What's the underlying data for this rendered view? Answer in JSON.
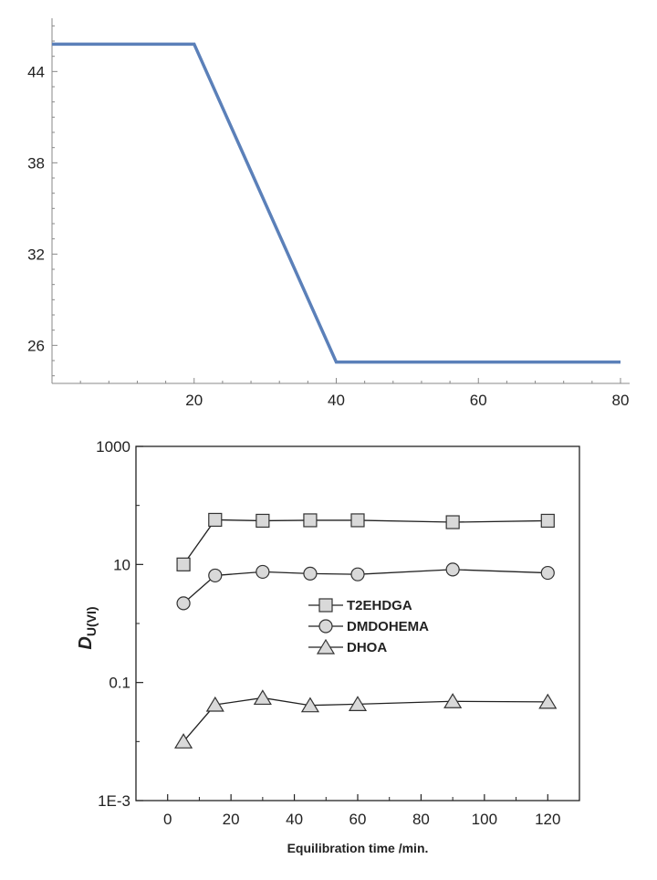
{
  "chart_data": [
    {
      "type": "line",
      "title": "",
      "xlabel": "",
      "ylabel": "",
      "xlim": [
        0,
        80
      ],
      "ylim": [
        23.5,
        47.5
      ],
      "x_ticks": [
        20,
        40,
        60,
        80
      ],
      "x_tick_labels": [
        "20",
        "40",
        "60",
        "80"
      ],
      "y_ticks": [
        26,
        32,
        38,
        44
      ],
      "y_tick_labels": [
        "26",
        "32",
        "38",
        "44"
      ],
      "grid": false,
      "line_color": "#5b80b9",
      "series": [
        {
          "x": [
            0,
            20,
            40,
            80
          ],
          "y": [
            45.8,
            45.8,
            24.9,
            24.9
          ]
        }
      ]
    },
    {
      "type": "line",
      "title": "",
      "xlabel": "Equilibration time /min.",
      "ylabel": "DU(VI)",
      "ylabel_main": "D",
      "ylabel_sub": "U(VI)",
      "y_scale": "log",
      "xlim": [
        -10,
        130
      ],
      "ylim": [
        0.001,
        1000
      ],
      "x_ticks": [
        0,
        20,
        40,
        60,
        80,
        100,
        120
      ],
      "x_tick_labels": [
        "0",
        "20",
        "40",
        "60",
        "80",
        "100",
        "120"
      ],
      "y_ticks": [
        0.001,
        0.1,
        10,
        1000
      ],
      "y_tick_labels": [
        "1E-3",
        "0.1",
        "10",
        "1000"
      ],
      "grid": false,
      "legend_position": "center-right",
      "series": [
        {
          "name": "T2EHDGA",
          "marker": "square",
          "x": [
            5,
            15,
            30,
            45,
            60,
            90,
            120
          ],
          "y": [
            10,
            57,
            55,
            56,
            56,
            52,
            55
          ]
        },
        {
          "name": "DMDOHEMA",
          "marker": "circle",
          "x": [
            5,
            15,
            30,
            45,
            60,
            90,
            120
          ],
          "y": [
            2.2,
            6.5,
            7.5,
            7.0,
            6.8,
            8.2,
            7.2
          ]
        },
        {
          "name": "DHOA",
          "marker": "triangle",
          "x": [
            5,
            15,
            30,
            45,
            60,
            90,
            120
          ],
          "y": [
            0.01,
            0.042,
            0.055,
            0.041,
            0.043,
            0.048,
            0.047
          ]
        }
      ]
    }
  ]
}
